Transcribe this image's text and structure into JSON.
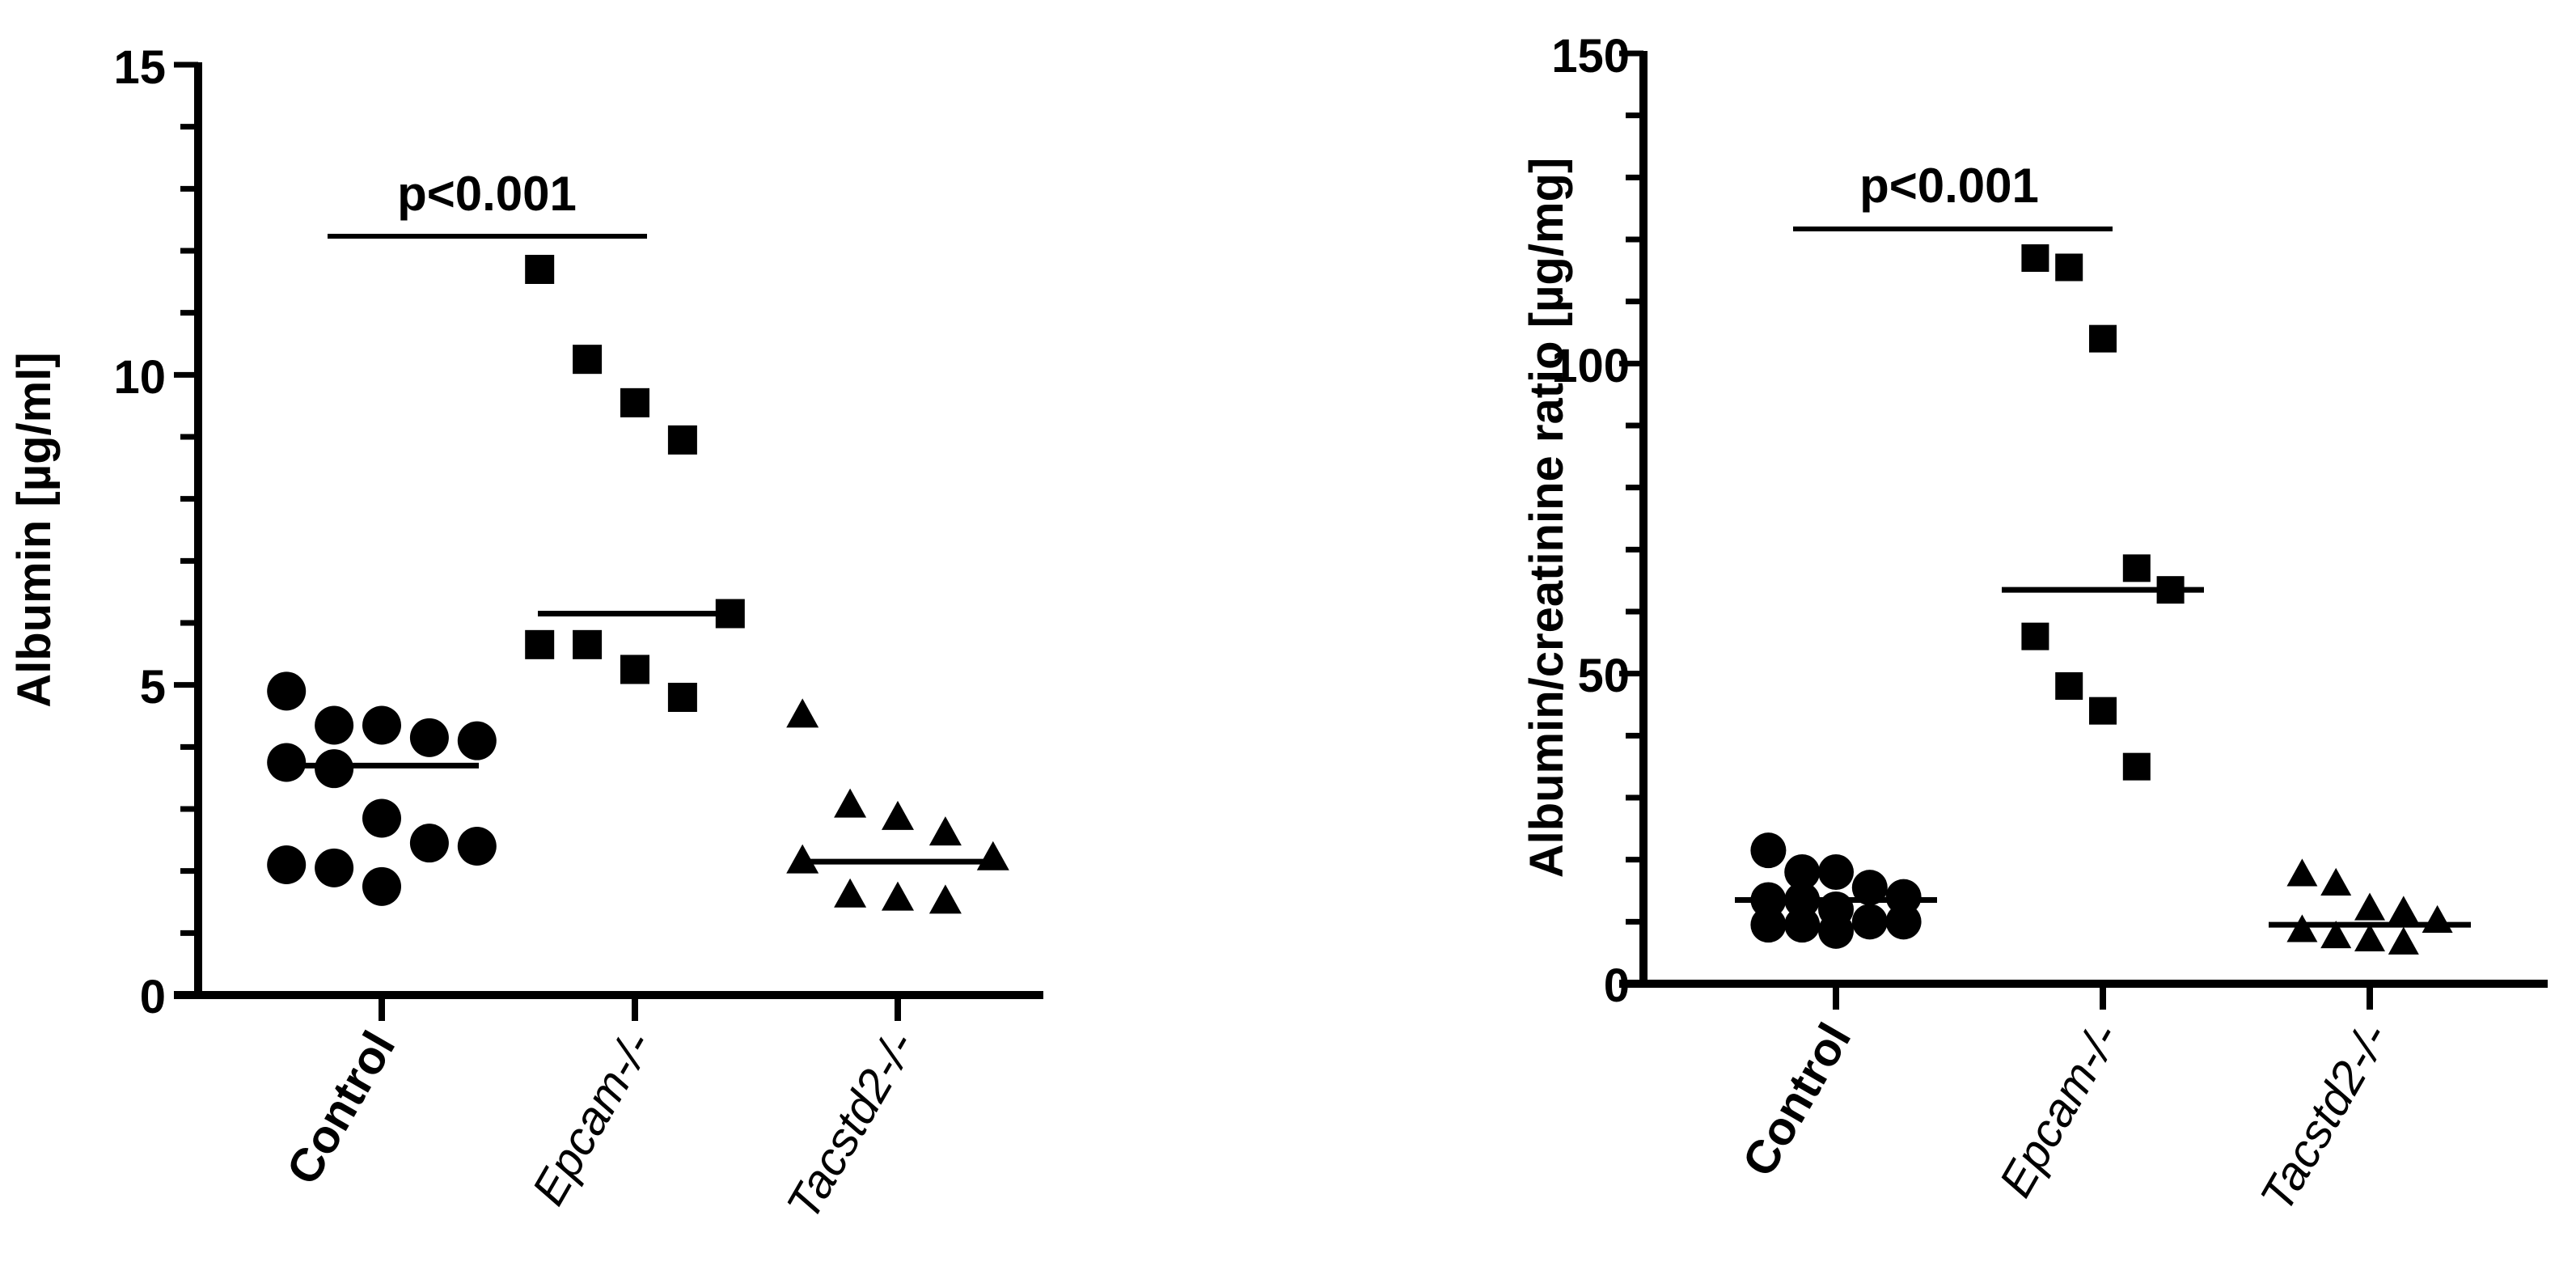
{
  "chart_data": [
    {
      "type": "scatter",
      "subtype": "dot-plot-with-median",
      "title": "",
      "xlabel": "",
      "ylabel": "Albumin [µg/ml]",
      "ylim": [
        0,
        15
      ],
      "yticks": [
        0,
        5,
        10,
        15
      ],
      "yticks_labels": [
        "0",
        "5",
        "10",
        "15"
      ],
      "minor_tick_step": 1,
      "grid": false,
      "categories": [
        "Control",
        "Epcam-/-",
        "Tacstd2-/-"
      ],
      "category_styles": [
        "bold",
        "italic",
        "italic"
      ],
      "series": [
        {
          "name": "Control",
          "marker": "circle",
          "median": 3.7,
          "values": [
            4.9,
            4.35,
            4.35,
            4.15,
            4.1,
            3.65,
            3.75,
            2.85,
            2.45,
            2.4,
            2.05,
            2.1,
            1.75
          ]
        },
        {
          "name": "Epcam-/-",
          "marker": "square",
          "median": 6.15,
          "values": [
            11.7,
            10.25,
            9.55,
            8.95,
            6.15,
            5.65,
            5.65,
            5.25,
            4.8
          ]
        },
        {
          "name": "Tacstd2-/-",
          "marker": "triangle",
          "median": 2.15,
          "values": [
            4.5,
            2.85,
            3.05,
            2.6,
            2.2,
            2.15,
            1.6,
            1.5,
            1.55
          ]
        }
      ],
      "annotations": [
        {
          "text": "p<0.001",
          "from": "Control",
          "to": "Epcam-/-",
          "y": 12.5
        }
      ]
    },
    {
      "type": "scatter",
      "subtype": "dot-plot-with-median",
      "title": "",
      "xlabel": "",
      "ylabel": "Albumin/creatinine ratio [µg/mg]",
      "ylim": [
        0,
        150
      ],
      "yticks": [
        0,
        50,
        100,
        150
      ],
      "yticks_labels": [
        "0",
        "50",
        "100",
        "150"
      ],
      "minor_tick_step": 10,
      "grid": false,
      "categories": [
        "Control",
        "Epcam-/-",
        "Tacstd2-/-"
      ],
      "category_styles": [
        "bold",
        "italic",
        "italic"
      ],
      "series": [
        {
          "name": "Control",
          "marker": "circle",
          "median": 13.5,
          "values": [
            21.5,
            18,
            18,
            15.5,
            14,
            13.5,
            13.5,
            12,
            9.5,
            10,
            9.5,
            10,
            8.5
          ]
        },
        {
          "name": "Epcam-/-",
          "marker": "square",
          "median": 63.5,
          "values": [
            117,
            115.5,
            104,
            67,
            63.5,
            56,
            48,
            44,
            35
          ]
        },
        {
          "name": "Tacstd2-/-",
          "marker": "triangle",
          "median": 9.5,
          "values": [
            17.5,
            16,
            12,
            11.5,
            10,
            8.5,
            7.5,
            7,
            6.5
          ]
        }
      ],
      "annotations": [
        {
          "text": "p<0.001",
          "from": "Control",
          "to": "Epcam-/-",
          "y": 125
        }
      ]
    }
  ],
  "left": {
    "ylabel": "Albumin [µg/ml]",
    "ticks": [
      "0",
      "5",
      "10",
      "15"
    ],
    "categories": [
      "Control",
      "Epcam-/-",
      "Tacstd2-/-"
    ],
    "sig": "p<0.001"
  },
  "right": {
    "ylabel": "Albumin/creatinine ratio [µg/mg]",
    "ticks": [
      "0",
      "50",
      "100",
      "150"
    ],
    "categories": [
      "Control",
      "Epcam-/-",
      "Tacstd2-/-"
    ],
    "sig": "p<0.001"
  }
}
